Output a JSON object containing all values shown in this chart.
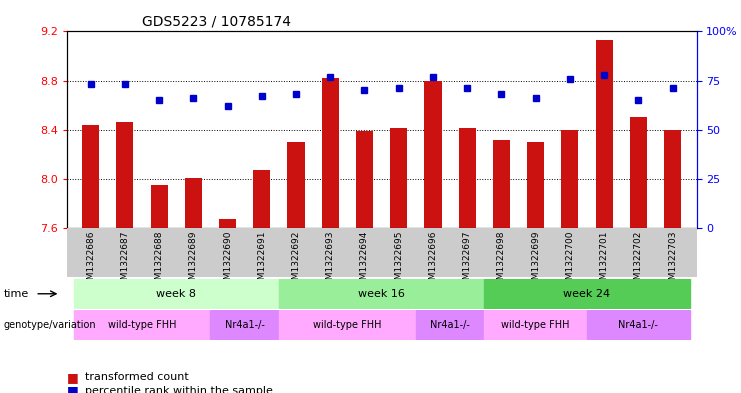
{
  "title": "GDS5223 / 10785174",
  "samples": [
    "GSM1322686",
    "GSM1322687",
    "GSM1322688",
    "GSM1322689",
    "GSM1322690",
    "GSM1322691",
    "GSM1322692",
    "GSM1322693",
    "GSM1322694",
    "GSM1322695",
    "GSM1322696",
    "GSM1322697",
    "GSM1322698",
    "GSM1322699",
    "GSM1322700",
    "GSM1322701",
    "GSM1322702",
    "GSM1322703"
  ],
  "transformed_count": [
    8.44,
    8.46,
    7.95,
    8.01,
    7.67,
    8.07,
    8.3,
    8.82,
    8.39,
    8.41,
    8.8,
    8.41,
    8.32,
    8.3,
    8.4,
    9.13,
    8.5,
    8.4
  ],
  "percentile_rank": [
    73,
    73,
    65,
    66,
    62,
    67,
    68,
    77,
    70,
    71,
    77,
    71,
    68,
    66,
    76,
    78,
    65,
    71
  ],
  "ylim_left": [
    7.6,
    9.2
  ],
  "ylim_right": [
    0,
    100
  ],
  "yticks_left": [
    7.6,
    8.0,
    8.4,
    8.8,
    9.2
  ],
  "yticks_right": [
    0,
    25,
    50,
    75,
    100
  ],
  "ytick_labels_right": [
    "0",
    "25",
    "50",
    "75",
    "100%"
  ],
  "bar_color": "#cc1111",
  "dot_color": "#0000cc",
  "grid_color": "#000000",
  "time_groups": [
    {
      "label": "week 8",
      "start": 0,
      "end": 5,
      "color": "#ccffcc"
    },
    {
      "label": "week 16",
      "start": 6,
      "end": 11,
      "color": "#99ee99"
    },
    {
      "label": "week 24",
      "start": 12,
      "end": 17,
      "color": "#55cc55"
    }
  ],
  "genotype_groups": [
    {
      "label": "wild-type FHH",
      "start": 0,
      "end": 3,
      "color": "#ffaaff"
    },
    {
      "label": "Nr4a1-/-",
      "start": 4,
      "end": 5,
      "color": "#dd88ff"
    },
    {
      "label": "wild-type FHH",
      "start": 6,
      "end": 9,
      "color": "#ffaaff"
    },
    {
      "label": "Nr4a1-/-",
      "start": 10,
      "end": 11,
      "color": "#dd88ff"
    },
    {
      "label": "wild-type FHH",
      "start": 12,
      "end": 14,
      "color": "#ffaaff"
    },
    {
      "label": "Nr4a1-/-",
      "start": 15,
      "end": 17,
      "color": "#dd88ff"
    }
  ],
  "legend_items": [
    {
      "label": "transformed count",
      "color": "#cc1111",
      "marker": "s"
    },
    {
      "label": "percentile rank within the sample",
      "color": "#0000cc",
      "marker": "s"
    }
  ],
  "time_row_label": "time",
  "genotype_row_label": "genotype/variation",
  "background_color": "#ffffff",
  "plot_bg_color": "#ffffff"
}
